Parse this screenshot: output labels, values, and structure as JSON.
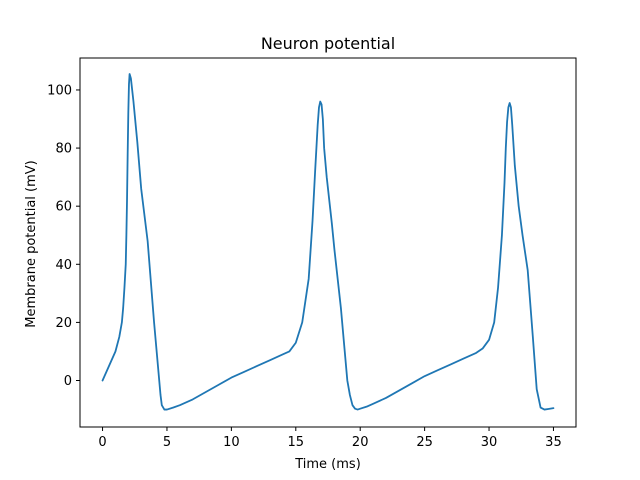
{
  "chart_data": {
    "type": "line",
    "title": "Neuron potential",
    "xlabel": "Time (ms)",
    "ylabel": "Membrane potential (mV)",
    "xlim": [
      -1.75,
      36.75
    ],
    "ylim": [
      -16,
      111
    ],
    "xticks": [
      0,
      5,
      10,
      15,
      20,
      25,
      30,
      35
    ],
    "yticks": [
      0,
      20,
      40,
      60,
      80,
      100
    ],
    "grid": false,
    "colors": {
      "line": "#1f77b4",
      "axes": "#000000",
      "background": "#ffffff"
    },
    "series": [
      {
        "x": [
          0,
          0.5,
          1.0,
          1.3,
          1.5,
          1.6,
          1.7,
          1.8,
          1.85,
          1.9,
          1.95,
          2.0,
          2.05,
          2.1,
          2.2,
          2.4,
          2.7,
          3.0,
          3.5,
          4.0,
          4.3,
          4.5,
          4.6,
          4.8,
          5.0,
          5.5,
          6.0,
          7.0,
          8.0,
          9.0,
          10.0,
          11.0,
          12.0,
          13.0,
          14.0,
          14.5,
          15.0,
          15.5,
          16.0,
          16.3,
          16.5,
          16.7,
          16.8,
          16.9,
          17.0,
          17.1,
          17.2,
          17.4,
          17.8,
          18.0,
          18.5,
          19.0,
          19.2,
          19.4,
          19.6,
          19.8,
          20.0,
          20.5,
          21.0,
          22.0,
          23.0,
          24.0,
          25.0,
          26.0,
          27.0,
          28.0,
          29.0,
          29.5,
          30.0,
          30.4,
          30.7,
          31.0,
          31.2,
          31.3,
          31.4,
          31.5,
          31.6,
          31.7,
          31.8,
          32.0,
          32.3,
          32.6,
          33.0,
          33.4,
          33.7,
          34.0,
          34.3,
          34.6,
          35.0
        ],
        "y": [
          0,
          5,
          10,
          15,
          20,
          25,
          32,
          40,
          50,
          62,
          78,
          92,
          102,
          105.5,
          104,
          96,
          82,
          66,
          48,
          20,
          5,
          -5,
          -8.5,
          -10,
          -10,
          -9.3,
          -8.5,
          -6.5,
          -4,
          -1.5,
          1,
          3,
          5,
          7,
          9,
          10,
          13,
          20,
          35,
          55,
          72,
          88,
          94,
          96,
          95,
          90,
          80,
          70,
          54,
          45,
          25,
          0,
          -5,
          -8.5,
          -9.7,
          -10,
          -9.7,
          -9,
          -8,
          -6,
          -3.5,
          -1,
          1.5,
          3.5,
          5.5,
          7.5,
          9.5,
          11,
          14,
          20,
          32,
          50,
          68,
          80,
          89,
          94,
          95.5,
          94,
          88,
          74,
          60,
          50,
          38,
          15,
          -3,
          -9.3,
          -10,
          -9.8,
          -9.5
        ]
      }
    ]
  }
}
